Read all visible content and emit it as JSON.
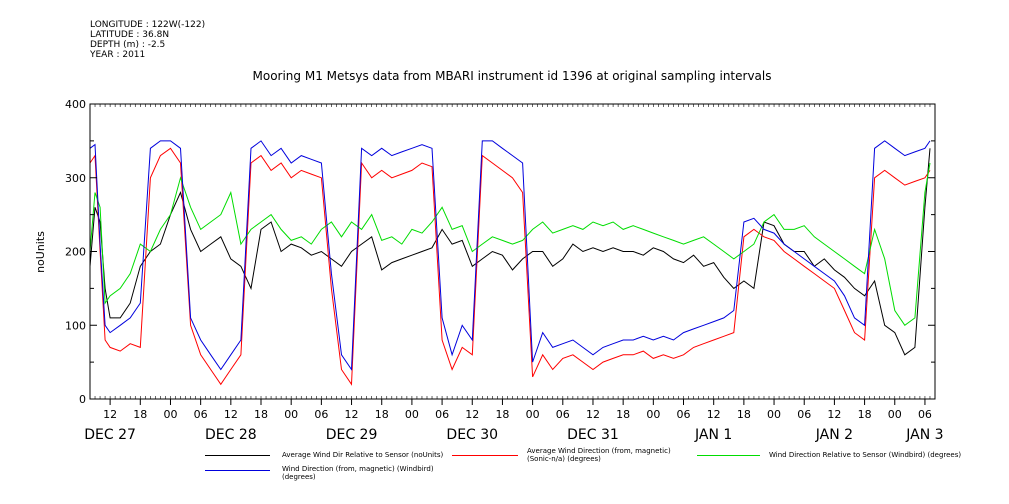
{
  "meta": {
    "longitude": "LONGITUDE : 122W(-122)",
    "latitude": "LATITUDE : 36.8N",
    "depth": "DEPTH (m) : -2.5",
    "year": "YEAR : 2011"
  },
  "chart_data": {
    "type": "line",
    "title": "Mooring M1 Metsys data from MBARI instrument id 1396 at original sampling intervals",
    "ylabel": "noUnits",
    "xlabel": "",
    "ylim": [
      0,
      400
    ],
    "yticks": [
      0,
      100,
      200,
      300,
      400
    ],
    "xlim_hours": [
      0,
      168
    ],
    "hour_tick_labels": [
      {
        "h": 4,
        "label": "12"
      },
      {
        "h": 10,
        "label": "18"
      },
      {
        "h": 16,
        "label": "00"
      },
      {
        "h": 22,
        "label": "06"
      },
      {
        "h": 28,
        "label": "12"
      },
      {
        "h": 34,
        "label": "18"
      },
      {
        "h": 40,
        "label": "00"
      },
      {
        "h": 46,
        "label": "06"
      },
      {
        "h": 52,
        "label": "12"
      },
      {
        "h": 58,
        "label": "18"
      },
      {
        "h": 64,
        "label": "00"
      },
      {
        "h": 70,
        "label": "06"
      },
      {
        "h": 76,
        "label": "12"
      },
      {
        "h": 82,
        "label": "18"
      },
      {
        "h": 88,
        "label": "00"
      },
      {
        "h": 94,
        "label": "06"
      },
      {
        "h": 100,
        "label": "12"
      },
      {
        "h": 106,
        "label": "18"
      },
      {
        "h": 112,
        "label": "00"
      },
      {
        "h": 118,
        "label": "06"
      },
      {
        "h": 124,
        "label": "12"
      },
      {
        "h": 130,
        "label": "18"
      },
      {
        "h": 136,
        "label": "00"
      },
      {
        "h": 142,
        "label": "06"
      },
      {
        "h": 148,
        "label": "12"
      },
      {
        "h": 154,
        "label": "18"
      },
      {
        "h": 160,
        "label": "00"
      },
      {
        "h": 166,
        "label": "06"
      }
    ],
    "day_labels": [
      {
        "h": 4,
        "label": "DEC 27"
      },
      {
        "h": 28,
        "label": "DEC 28"
      },
      {
        "h": 52,
        "label": "DEC 29"
      },
      {
        "h": 76,
        "label": "DEC 30"
      },
      {
        "h": 100,
        "label": "DEC 31"
      },
      {
        "h": 124,
        "label": "JAN  1"
      },
      {
        "h": 148,
        "label": "JAN  2"
      },
      {
        "h": 166,
        "label": "JAN  3"
      }
    ],
    "series": [
      {
        "name": "Average Wind Dir Relative to Sensor (noUnits)",
        "color": "#000000",
        "x": [
          0,
          1,
          2,
          3,
          4,
          6,
          8,
          10,
          12,
          14,
          16,
          18,
          20,
          22,
          24,
          26,
          28,
          30,
          32,
          34,
          36,
          38,
          40,
          42,
          44,
          46,
          48,
          50,
          52,
          54,
          56,
          58,
          60,
          62,
          64,
          66,
          68,
          70,
          72,
          74,
          76,
          78,
          80,
          82,
          84,
          86,
          88,
          90,
          92,
          94,
          96,
          98,
          100,
          102,
          104,
          106,
          108,
          110,
          112,
          114,
          116,
          118,
          120,
          122,
          124,
          126,
          128,
          130,
          132,
          134,
          136,
          138,
          140,
          142,
          144,
          146,
          148,
          150,
          152,
          154,
          156,
          158,
          160,
          162,
          164,
          166,
          167
        ],
        "y": [
          180,
          260,
          240,
          150,
          110,
          110,
          130,
          180,
          200,
          210,
          250,
          280,
          230,
          200,
          210,
          220,
          190,
          180,
          150,
          230,
          240,
          200,
          210,
          205,
          195,
          200,
          190,
          180,
          200,
          210,
          220,
          175,
          185,
          190,
          195,
          200,
          205,
          230,
          210,
          215,
          180,
          190,
          200,
          195,
          175,
          190,
          200,
          200,
          180,
          190,
          210,
          200,
          205,
          200,
          205,
          200,
          200,
          195,
          205,
          200,
          190,
          185,
          195,
          180,
          185,
          165,
          150,
          160,
          150,
          240,
          235,
          210,
          200,
          200,
          180,
          190,
          175,
          165,
          150,
          140,
          160,
          100,
          90,
          60,
          70,
          260,
          340
        ]
      },
      {
        "name": "Average Wind Direction (from, magnetic) (Sonic-n/a) (degrees)",
        "color": "#ff0000",
        "x": [
          0,
          1,
          2,
          3,
          4,
          6,
          8,
          10,
          12,
          14,
          16,
          18,
          20,
          22,
          24,
          26,
          28,
          30,
          32,
          34,
          36,
          38,
          40,
          42,
          44,
          46,
          48,
          50,
          52,
          54,
          56,
          58,
          60,
          62,
          64,
          66,
          68,
          70,
          72,
          74,
          76,
          78,
          80,
          82,
          84,
          86,
          88,
          90,
          92,
          94,
          96,
          98,
          100,
          102,
          104,
          106,
          108,
          110,
          112,
          114,
          116,
          118,
          120,
          122,
          124,
          126,
          128,
          130,
          132,
          134,
          136,
          138,
          140,
          142,
          144,
          146,
          148,
          150,
          152,
          154,
          156,
          158,
          160,
          162,
          164,
          166,
          167
        ],
        "y": [
          320,
          330,
          200,
          80,
          70,
          65,
          75,
          70,
          300,
          330,
          340,
          320,
          100,
          60,
          40,
          20,
          40,
          60,
          320,
          330,
          310,
          320,
          300,
          310,
          305,
          300,
          150,
          40,
          20,
          320,
          300,
          310,
          300,
          305,
          310,
          320,
          315,
          80,
          40,
          70,
          60,
          330,
          320,
          310,
          300,
          280,
          30,
          60,
          40,
          55,
          60,
          50,
          40,
          50,
          55,
          60,
          60,
          65,
          55,
          60,
          55,
          60,
          70,
          75,
          80,
          85,
          90,
          220,
          230,
          220,
          215,
          200,
          190,
          180,
          170,
          160,
          150,
          120,
          90,
          80,
          300,
          310,
          300,
          290,
          295,
          300,
          310
        ]
      },
      {
        "name": "Wind Direction Relative to Sensor (Windbird) (degrees)",
        "color": "#00dd00",
        "x": [
          0,
          1,
          2,
          3,
          4,
          6,
          8,
          10,
          12,
          14,
          16,
          18,
          20,
          22,
          24,
          26,
          28,
          30,
          32,
          34,
          36,
          38,
          40,
          42,
          44,
          46,
          48,
          50,
          52,
          54,
          56,
          58,
          60,
          62,
          64,
          66,
          68,
          70,
          72,
          74,
          76,
          78,
          80,
          82,
          84,
          86,
          88,
          90,
          92,
          94,
          96,
          98,
          100,
          102,
          104,
          106,
          108,
          110,
          112,
          114,
          116,
          118,
          120,
          122,
          124,
          126,
          128,
          130,
          132,
          134,
          136,
          138,
          140,
          142,
          144,
          146,
          148,
          150,
          152,
          154,
          156,
          158,
          160,
          162,
          164,
          166,
          167
        ],
        "y": [
          200,
          280,
          260,
          130,
          140,
          150,
          170,
          210,
          200,
          230,
          250,
          300,
          260,
          230,
          240,
          250,
          280,
          210,
          230,
          240,
          250,
          230,
          215,
          220,
          210,
          230,
          240,
          220,
          240,
          230,
          250,
          215,
          220,
          210,
          230,
          225,
          240,
          260,
          230,
          235,
          200,
          210,
          220,
          215,
          210,
          215,
          230,
          240,
          225,
          230,
          235,
          230,
          240,
          235,
          240,
          230,
          235,
          230,
          225,
          220,
          215,
          210,
          215,
          220,
          210,
          200,
          190,
          200,
          210,
          240,
          250,
          230,
          230,
          235,
          220,
          210,
          200,
          190,
          180,
          170,
          230,
          190,
          120,
          100,
          110,
          280,
          320
        ]
      },
      {
        "name": "Wind Direction (from, magnetic) (Windbird) (degrees)",
        "color": "#0000dd",
        "x": [
          0,
          1,
          2,
          3,
          4,
          6,
          8,
          10,
          12,
          14,
          16,
          18,
          20,
          22,
          24,
          26,
          28,
          30,
          32,
          34,
          36,
          38,
          40,
          42,
          44,
          46,
          48,
          50,
          52,
          54,
          56,
          58,
          60,
          62,
          64,
          66,
          68,
          70,
          72,
          74,
          76,
          78,
          80,
          82,
          84,
          86,
          88,
          90,
          92,
          94,
          96,
          98,
          100,
          102,
          104,
          106,
          108,
          110,
          112,
          114,
          116,
          118,
          120,
          122,
          124,
          126,
          128,
          130,
          132,
          134,
          136,
          138,
          140,
          142,
          144,
          146,
          148,
          150,
          152,
          154,
          156,
          158,
          160,
          162,
          164,
          166,
          167
        ],
        "y": [
          340,
          345,
          210,
          100,
          90,
          100,
          110,
          130,
          340,
          350,
          350,
          340,
          110,
          80,
          60,
          40,
          60,
          80,
          340,
          350,
          330,
          340,
          320,
          330,
          325,
          320,
          170,
          60,
          40,
          340,
          330,
          340,
          330,
          335,
          340,
          345,
          340,
          110,
          60,
          100,
          80,
          350,
          350,
          340,
          330,
          320,
          50,
          90,
          70,
          75,
          80,
          70,
          60,
          70,
          75,
          80,
          80,
          85,
          80,
          85,
          80,
          90,
          95,
          100,
          105,
          110,
          120,
          240,
          245,
          230,
          225,
          210,
          200,
          190,
          180,
          170,
          160,
          140,
          110,
          100,
          340,
          350,
          340,
          330,
          335,
          340,
          350
        ]
      }
    ],
    "legend": [
      {
        "label": "Average Wind Dir Relative to Sensor (noUnits)",
        "color": "#000000"
      },
      {
        "label": "Average Wind Direction (from, magnetic) (Sonic-n/a) (degrees)",
        "color": "#ff0000"
      },
      {
        "label": "Wind Direction Relative to Sensor (Windbird) (degrees)",
        "color": "#00dd00"
      },
      {
        "label": "Wind Direction (from, magnetic) (Windbird) (degrees)",
        "color": "#0000dd"
      }
    ],
    "grid": false
  }
}
